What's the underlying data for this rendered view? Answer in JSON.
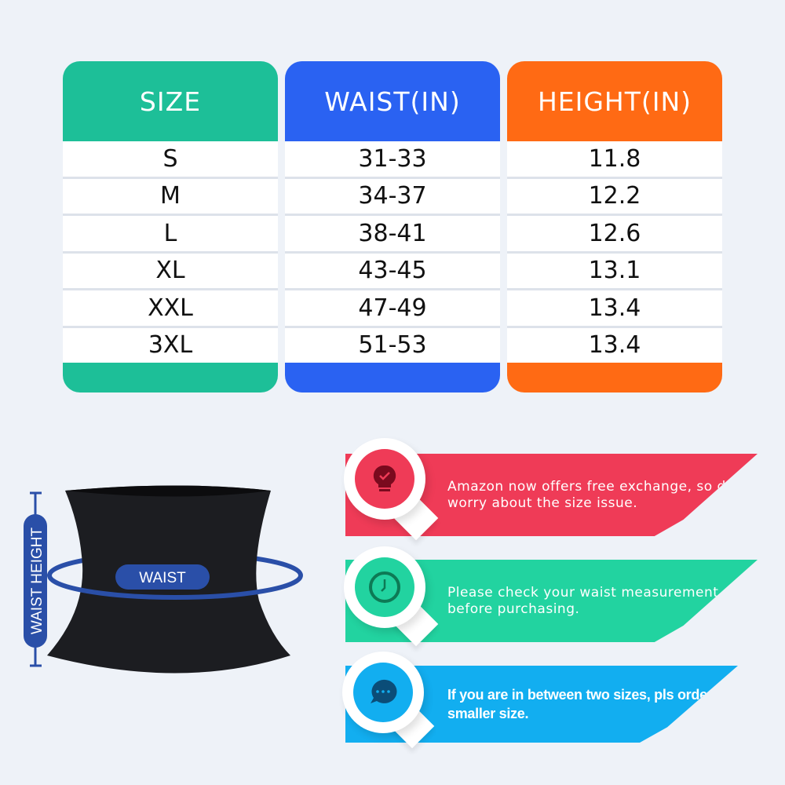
{
  "table": {
    "headers": [
      "SIZE",
      "WAIST(IN)",
      "HEIGHT(IN)"
    ],
    "header_colors": [
      "#1dbf98",
      "#2a62f2",
      "#ff6a14"
    ],
    "rows": [
      [
        "S",
        "31-33",
        "11.8"
      ],
      [
        "M",
        "34-37",
        "12.2"
      ],
      [
        "L",
        "38-41",
        "12.6"
      ],
      [
        "XL",
        "43-45",
        "13.1"
      ],
      [
        "XXL",
        "47-49",
        "13.4"
      ],
      [
        "3XL",
        "51-53",
        "13.4"
      ]
    ]
  },
  "diagram": {
    "waist_label": "WAIST",
    "height_label": "WAIST HEIGHT",
    "accent": "#2a4fa8"
  },
  "tips": [
    {
      "icon": "lightbulb-check-icon",
      "color": "#ef3b57",
      "text": "Amazon now offers free exchange, so don't worry about the size issue."
    },
    {
      "icon": "clock-icon",
      "color": "#22d3a0",
      "text": "Please check your waist measurement before purchasing."
    },
    {
      "icon": "chat-bubble-icon",
      "color": "#12aef0",
      "text": "If you are in between two sizes, pls order the smaller size."
    }
  ]
}
